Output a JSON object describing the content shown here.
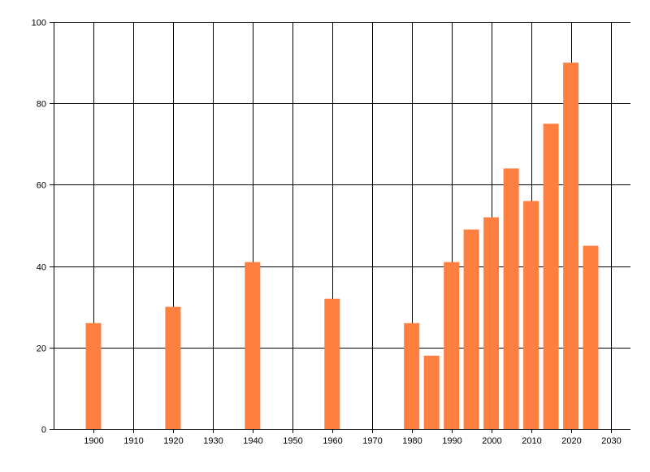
{
  "chart_data": {
    "type": "bar",
    "title": "",
    "xlabel": "",
    "ylabel": "",
    "x": [
      1900,
      1920,
      1940,
      1960,
      1980,
      1985,
      1990,
      1995,
      2000,
      2005,
      2010,
      2015,
      2020,
      2025
    ],
    "values": [
      26,
      30,
      41,
      32,
      26,
      18,
      41,
      49,
      52,
      64,
      56,
      75,
      90,
      45
    ],
    "xlim": [
      1890,
      2035
    ],
    "ylim": [
      0,
      100
    ],
    "x_ticks": [
      1900,
      1910,
      1920,
      1930,
      1940,
      1950,
      1960,
      1970,
      1980,
      1990,
      2000,
      2010,
      2020,
      2030
    ],
    "y_ticks": [
      0,
      20,
      40,
      60,
      80,
      100
    ],
    "grid": true,
    "colors": {
      "bar": "#ff7f40",
      "grid": "#000000",
      "axis": "#000000"
    }
  }
}
